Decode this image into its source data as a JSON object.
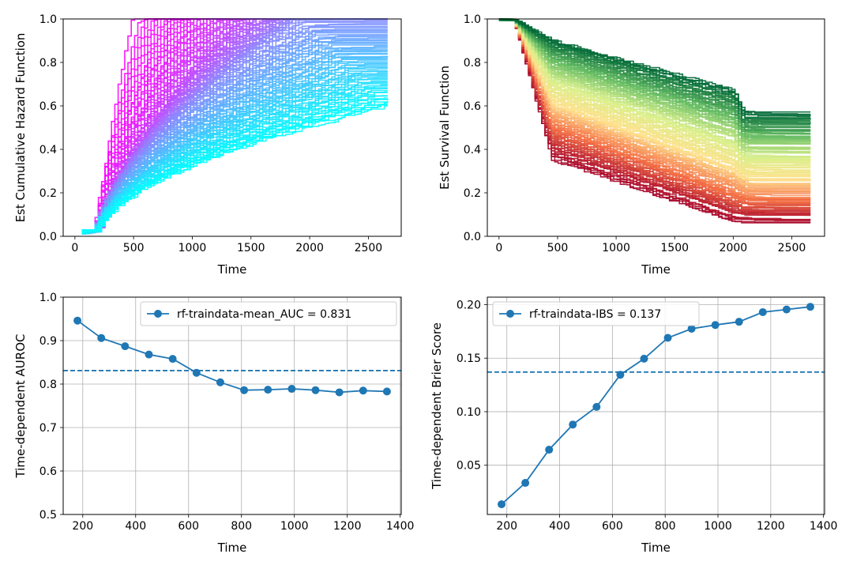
{
  "chart_data": [
    {
      "type": "line",
      "panel": "top-left",
      "title": "",
      "xlabel": "Time",
      "ylabel": "Est Cumulative Hazard Function",
      "xlim": [
        -100,
        2780
      ],
      "ylim": [
        0.0,
        1.0
      ],
      "xticks": [
        0,
        500,
        1000,
        1500,
        2000,
        2500
      ],
      "yticks": [
        0.0,
        0.2,
        0.4,
        0.6,
        0.8,
        1.0
      ],
      "xtick_labels": [
        "0",
        "500",
        "1000",
        "1500",
        "2000",
        "2500"
      ],
      "ytick_labels": [
        "0.0",
        "0.2",
        "0.4",
        "0.6",
        "0.8",
        "1.0"
      ],
      "grid": false,
      "colormap": [
        "#ff00ff",
        "#9a7bff",
        "#00ffff"
      ],
      "series_summary": {
        "count": 150,
        "step_function": true,
        "t_start": 60,
        "t_end": 2670,
        "final_value_min": 0.59,
        "final_value_max": 1.0,
        "saturate_time_earliest": 480
      }
    },
    {
      "type": "line",
      "panel": "top-right",
      "title": "",
      "xlabel": "Time",
      "ylabel": "Est Survival Function",
      "xlim": [
        -100,
        2780
      ],
      "ylim": [
        0.0,
        1.0
      ],
      "xticks": [
        0,
        500,
        1000,
        1500,
        2000,
        2500
      ],
      "yticks": [
        0.0,
        0.2,
        0.4,
        0.6,
        0.8,
        1.0
      ],
      "xtick_labels": [
        "0",
        "500",
        "1000",
        "1500",
        "2000",
        "2500"
      ],
      "ytick_labels": [
        "0.0",
        "0.2",
        "0.4",
        "0.6",
        "0.8",
        "1.0"
      ],
      "grid": false,
      "colormap": [
        "#a50026",
        "#f46d43",
        "#fee08b",
        "#d9ef8b",
        "#66bd63",
        "#006837"
      ],
      "series_summary": {
        "count": 150,
        "step_function": true,
        "t_start": 0,
        "t_end": 2670,
        "final_value_min": 0.08,
        "final_value_max": 0.57
      }
    },
    {
      "type": "line",
      "panel": "bottom-left",
      "title": "",
      "xlabel": "Time",
      "ylabel": "Time-dependent AUROC",
      "xlim": [
        126,
        1404
      ],
      "ylim": [
        0.5,
        1.0
      ],
      "xticks": [
        200,
        400,
        600,
        800,
        1000,
        1200,
        1400
      ],
      "yticks": [
        0.5,
        0.6,
        0.7,
        0.8,
        0.9,
        1.0
      ],
      "xtick_labels": [
        "200",
        "400",
        "600",
        "800",
        "1000",
        "1200",
        "1400"
      ],
      "ytick_labels": [
        "0.5",
        "0.6",
        "0.7",
        "0.8",
        "0.9",
        "1.0"
      ],
      "grid": true,
      "legend": "top-right",
      "series": [
        {
          "name": "rf-traindata-mean_AUC = 0.831",
          "color": "#1f77b4",
          "x": [
            180,
            270,
            360,
            450,
            540,
            630,
            720,
            810,
            900,
            990,
            1080,
            1170,
            1260,
            1350
          ],
          "y": [
            0.946,
            0.906,
            0.887,
            0.868,
            0.858,
            0.826,
            0.804,
            0.786,
            0.787,
            0.789,
            0.786,
            0.781,
            0.785,
            0.783
          ]
        }
      ],
      "reference_line": {
        "y": 0.831,
        "style": "dashed",
        "color": "#1f77b4"
      }
    },
    {
      "type": "line",
      "panel": "bottom-right",
      "title": "",
      "xlabel": "Time",
      "ylabel": "Time-dependent Brier Score",
      "xlim": [
        126,
        1404
      ],
      "ylim": [
        0.004,
        0.207
      ],
      "xticks": [
        200,
        400,
        600,
        800,
        1000,
        1200,
        1400
      ],
      "yticks": [
        0.05,
        0.1,
        0.15,
        0.2
      ],
      "xtick_labels": [
        "200",
        "400",
        "600",
        "800",
        "1000",
        "1200",
        "1400"
      ],
      "ytick_labels": [
        "0.05",
        "0.10",
        "0.15",
        "0.20"
      ],
      "grid": true,
      "legend": "top-left",
      "series": [
        {
          "name": "rf-traindata-IBS = 0.137",
          "color": "#1f77b4",
          "x": [
            180,
            270,
            360,
            450,
            540,
            630,
            720,
            810,
            900,
            990,
            1080,
            1170,
            1260,
            1350
          ],
          "y": [
            0.0135,
            0.0335,
            0.0645,
            0.088,
            0.1045,
            0.1345,
            0.1495,
            0.169,
            0.1775,
            0.181,
            0.184,
            0.193,
            0.1955,
            0.198
          ]
        }
      ],
      "reference_line": {
        "y": 0.137,
        "style": "dashed",
        "color": "#1f77b4"
      }
    }
  ]
}
